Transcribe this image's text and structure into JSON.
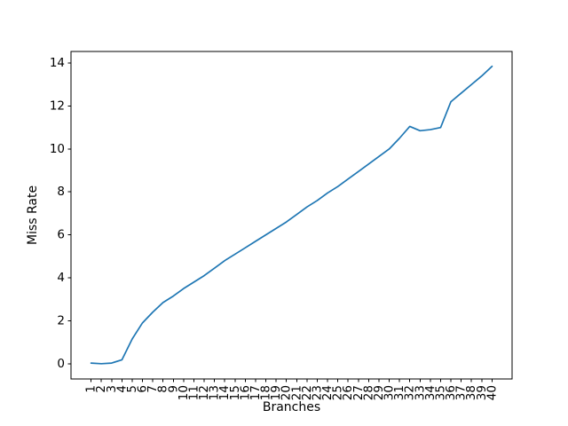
{
  "chart_data": {
    "type": "line",
    "title": "",
    "xlabel": "Branches",
    "ylabel": "Miss Rate",
    "x": [
      1,
      2,
      3,
      4,
      5,
      6,
      7,
      8,
      9,
      10,
      11,
      12,
      13,
      14,
      15,
      16,
      17,
      18,
      19,
      20,
      21,
      22,
      23,
      24,
      25,
      26,
      27,
      28,
      29,
      30,
      31,
      32,
      33,
      34,
      35,
      36,
      37,
      38,
      39,
      40
    ],
    "series": [
      {
        "name": "Miss Rate",
        "color": "#1f77b4",
        "values": [
          0.03,
          0.0,
          0.03,
          0.18,
          1.15,
          1.9,
          2.4,
          2.85,
          3.15,
          3.5,
          3.8,
          4.1,
          4.45,
          4.8,
          5.1,
          5.4,
          5.7,
          6.0,
          6.3,
          6.6,
          6.95,
          7.3,
          7.6,
          7.95,
          8.25,
          8.6,
          8.95,
          9.3,
          9.65,
          10.0,
          10.5,
          11.05,
          10.85,
          10.9,
          11.0,
          12.2,
          12.6,
          13.0,
          13.4,
          13.85
        ]
      }
    ],
    "yticks": [
      0,
      2,
      4,
      6,
      8,
      10,
      12,
      14
    ],
    "xticks": [
      1,
      2,
      3,
      4,
      5,
      6,
      7,
      8,
      9,
      10,
      11,
      12,
      13,
      14,
      15,
      16,
      17,
      18,
      19,
      20,
      21,
      22,
      23,
      24,
      25,
      26,
      27,
      28,
      29,
      30,
      31,
      32,
      33,
      34,
      35,
      36,
      37,
      38,
      39,
      40
    ],
    "x_tick_rotation": 90,
    "xlim": [
      -0.95,
      41.95
    ],
    "ylim": [
      -0.71,
      14.54
    ],
    "grid": false,
    "legend": false,
    "background_color": "#ffffff",
    "axis_color": "#000000",
    "text_color": "#000000"
  }
}
